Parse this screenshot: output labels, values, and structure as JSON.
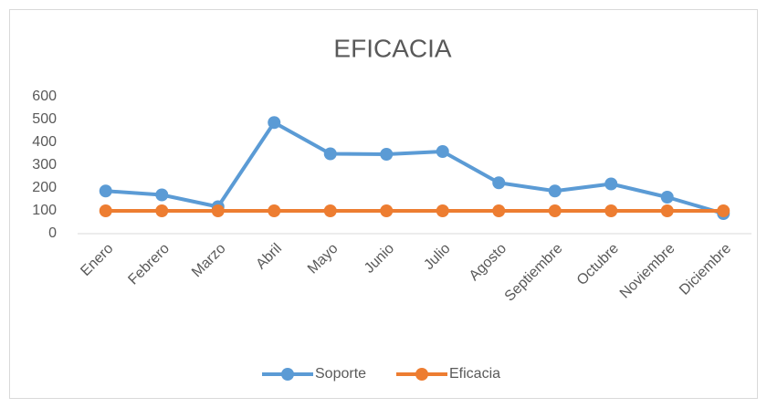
{
  "chart_data": {
    "type": "line",
    "title": "EFICACIA",
    "categories": [
      "Enero",
      "Febrero",
      "Marzo",
      "Abril",
      "Mayo",
      "Junio",
      "Julio",
      "Agosto",
      "Septiembre",
      "Octubre",
      "Noviembre",
      "Diciembre"
    ],
    "series": [
      {
        "name": "Soporte",
        "color": "#5b9bd5",
        "values": [
          187,
          170,
          118,
          487,
          350,
          348,
          360,
          223,
          187,
          218,
          160,
          88
        ]
      },
      {
        "name": "Eficacia",
        "color": "#ed7d31",
        "values": [
          100,
          100,
          100,
          100,
          100,
          100,
          100,
          100,
          100,
          100,
          100,
          100
        ]
      }
    ],
    "ylim": [
      0,
      600
    ],
    "yticks": [
      0,
      100,
      200,
      300,
      400,
      500,
      600
    ],
    "grid": false,
    "legend": "bottom"
  }
}
